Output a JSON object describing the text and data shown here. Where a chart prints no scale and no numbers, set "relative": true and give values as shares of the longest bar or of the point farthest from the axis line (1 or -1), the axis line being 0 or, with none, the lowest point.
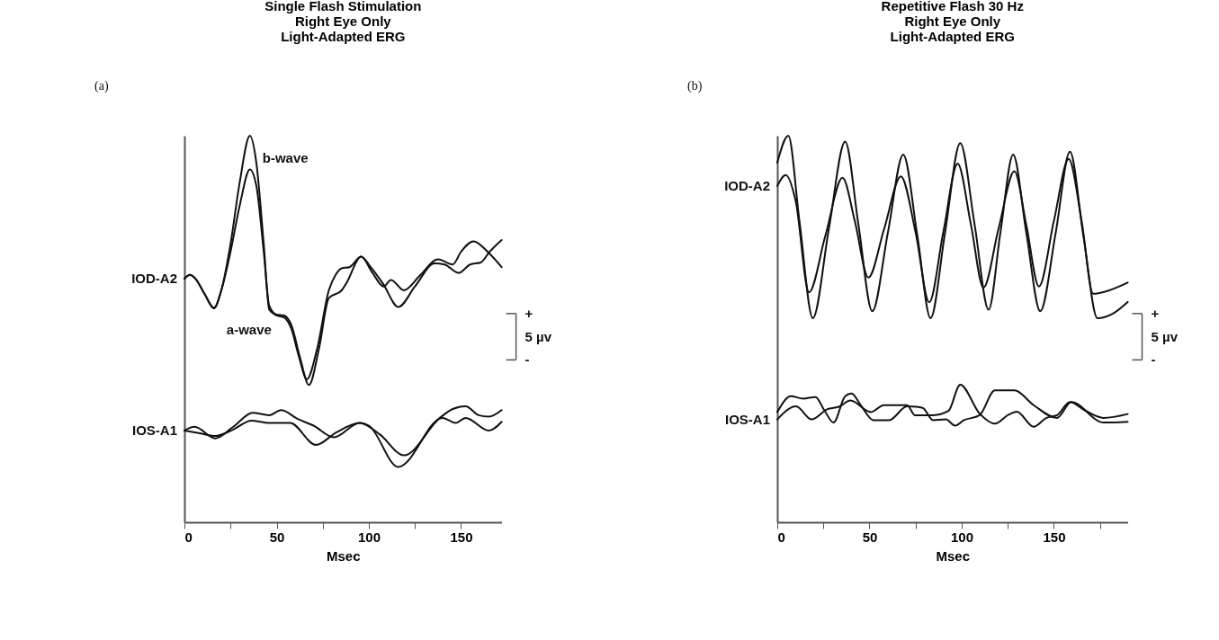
{
  "chart_data": [
    {
      "type": "line",
      "relative": true,
      "title": "Single Flash Stimulation\nRight Eye Only\nLight-Adapted ERG",
      "xlabel": "Msec",
      "xlim": [
        0,
        172
      ],
      "xticks": [
        0,
        {
          "value": 25,
          "label": null
        },
        50,
        {
          "value": 75,
          "label": null
        },
        100,
        {
          "value": 125,
          "label": null
        },
        150
      ],
      "series": [
        {
          "color": "#111111",
          "x": [
            0,
            3,
            6,
            11,
            16,
            20,
            25,
            30,
            35.5,
            39,
            43,
            46,
            50,
            54,
            58,
            62,
            66.4,
            72,
            78.3,
            82,
            85.3,
            89.5,
            95.8,
            102,
            108,
            112,
            119,
            128,
            137.5,
            145.5,
            150,
            156.7,
            165,
            172
          ],
          "values": [
            0.63,
            0.64,
            0.63,
            0.59,
            0.555,
            0.6,
            0.72,
            0.88,
            1.0,
            0.93,
            0.72,
            0.55,
            0.535,
            0.53,
            0.5,
            0.43,
            0.37,
            0.45,
            0.6,
            0.64,
            0.657,
            0.66,
            0.687,
            0.645,
            0.61,
            0.627,
            0.6,
            0.64,
            0.68,
            0.667,
            0.7,
            0.727,
            0.697,
            0.66
          ]
        },
        {
          "color": "#111111",
          "x": [
            0,
            3,
            6,
            11,
            16,
            20,
            25,
            30,
            35.5,
            39,
            43,
            46,
            50,
            54,
            58,
            63,
            67.5,
            73,
            78.3,
            85.3,
            88,
            95.8,
            101,
            107.7,
            116,
            125,
            135.7,
            141,
            148.7,
            155,
            160.7,
            165,
            172
          ],
          "values": [
            0.63,
            0.64,
            0.63,
            0.59,
            0.553,
            0.6,
            0.7,
            0.82,
            0.913,
            0.87,
            0.7,
            0.56,
            0.537,
            0.535,
            0.51,
            0.42,
            0.355,
            0.45,
            0.58,
            0.6,
            0.62,
            0.687,
            0.66,
            0.617,
            0.557,
            0.61,
            0.67,
            0.667,
            0.645,
            0.667,
            0.672,
            0.697,
            0.73
          ]
        },
        {
          "color": "#111111",
          "x": [
            0,
            5.5,
            16.7,
            26.5,
            37,
            46,
            52.4,
            61.5,
            70,
            81,
            95,
            106,
            119,
            138.5,
            145.5,
            152.5,
            159.5,
            165,
            172
          ],
          "values": [
            0.237,
            0.247,
            0.217,
            0.247,
            0.283,
            0.277,
            0.29,
            0.267,
            0.25,
            0.22,
            0.257,
            0.227,
            0.173,
            0.27,
            0.293,
            0.3,
            0.277,
            0.273,
            0.29
          ]
        },
        {
          "color": "#111111",
          "x": [
            0,
            8.3,
            16.7,
            26.5,
            36.3,
            46,
            57.3,
            71.3,
            82.5,
            95,
            100,
            116,
            140,
            147,
            152.5,
            165,
            172
          ],
          "values": [
            0.237,
            0.23,
            0.223,
            0.24,
            0.263,
            0.257,
            0.257,
            0.2,
            0.233,
            0.257,
            0.25,
            0.143,
            0.27,
            0.257,
            0.27,
            0.237,
            0.26
          ]
        }
      ],
      "annotations": [
        "(a)",
        "+",
        "5 µv",
        "-",
        {
          "text": "b-wave",
          "x": 35.5,
          "y": 1.0
        },
        {
          "text": "a-wave",
          "x": 16,
          "y": 0.555
        },
        {
          "text": "IOD-A2",
          "x": 0,
          "y": 0.63
        },
        {
          "text": "IOS-A1",
          "x": 0,
          "y": 0.237
        }
      ]
    },
    {
      "type": "line",
      "relative": true,
      "title": "Repetitive Flash 30 Hz\nRight Eye Only\nLight-Adapted ERG",
      "xlabel": "Msec",
      "xlim": [
        0,
        190
      ],
      "xticks": [
        0,
        {
          "value": 25,
          "label": null
        },
        50,
        {
          "value": 75,
          "label": null
        },
        100,
        {
          "value": 125,
          "label": null
        },
        150,
        {
          "value": 175,
          "label": null
        }
      ],
      "series": [
        {
          "color": "#111111",
          "x": [
            0,
            6,
            12,
            19.3,
            28,
            36.8,
            44,
            51.5,
            60,
            68.3,
            76,
            83.1,
            91,
            99.2,
            107,
            114.6,
            121,
            127.9,
            135,
            142.6,
            151,
            158.7,
            166,
            173.6,
            182,
            190
          ],
          "values": [
            0.93,
            1.0,
            0.78,
            0.528,
            0.76,
            0.985,
            0.77,
            0.546,
            0.75,
            0.951,
            0.74,
            0.528,
            0.75,
            0.981,
            0.77,
            0.55,
            0.75,
            0.951,
            0.75,
            0.546,
            0.75,
            0.959,
            0.74,
            0.528,
            0.54,
            0.57
          ]
        },
        {
          "color": "#111111",
          "x": [
            0,
            4.6,
            10,
            17.2,
            26,
            35.4,
            42,
            49.4,
            58,
            67,
            75,
            82.4,
            90,
            97.8,
            105,
            111.8,
            120,
            128.6,
            135,
            141.9,
            150,
            158,
            165,
            171.3,
            180,
            190
          ],
          "values": [
            0.87,
            0.898,
            0.83,
            0.595,
            0.74,
            0.891,
            0.78,
            0.633,
            0.76,
            0.895,
            0.75,
            0.569,
            0.75,
            0.928,
            0.77,
            0.607,
            0.76,
            0.908,
            0.77,
            0.61,
            0.78,
            0.94,
            0.78,
            0.591,
            0.6,
            0.62
          ]
        },
        {
          "color": "#111111",
          "x": [
            0,
            7.4,
            14,
            20.7,
            25.6,
            30.5,
            36.8,
            40.3,
            45.2,
            52.2,
            60.6,
            70.4,
            78.8,
            84.4,
            91.4,
            96.4,
            101.2,
            109.7,
            118,
            128.6,
            139,
            151.7,
            159.4,
            176.9,
            190
          ],
          "values": [
            0.285,
            0.326,
            0.32,
            0.324,
            0.289,
            0.258,
            0.326,
            0.333,
            0.303,
            0.264,
            0.264,
            0.3,
            0.296,
            0.264,
            0.266,
            0.25,
            0.264,
            0.277,
            0.341,
            0.341,
            0.303,
            0.27,
            0.311,
            0.258,
            0.26
          ]
        },
        {
          "color": "#111111",
          "x": [
            0,
            10.2,
            18.6,
            27,
            34,
            39.6,
            50.8,
            57.8,
            70.4,
            74.6,
            84.4,
            92.8,
            99.2,
            109.7,
            118,
            125,
            129.9,
            139,
            146,
            151.7,
            158.7,
            167,
            176.9,
            190
          ],
          "values": [
            0.266,
            0.3,
            0.266,
            0.292,
            0.3,
            0.315,
            0.285,
            0.303,
            0.303,
            0.277,
            0.277,
            0.288,
            0.356,
            0.281,
            0.255,
            0.277,
            0.286,
            0.247,
            0.27,
            0.277,
            0.311,
            0.289,
            0.27,
            0.28
          ]
        }
      ],
      "annotations": [
        "(b)",
        "+",
        "5 µv",
        "-",
        {
          "text": "IOD-A2",
          "x": 0,
          "y": 0.87
        },
        {
          "text": "IOS-A1",
          "x": 0,
          "y": 0.266
        }
      ]
    }
  ]
}
